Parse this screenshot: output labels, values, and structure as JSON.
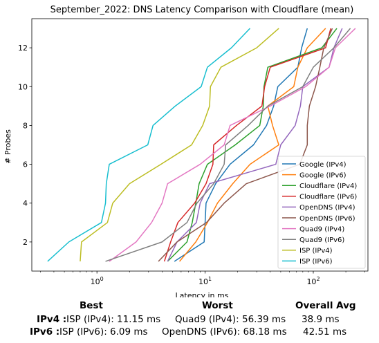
{
  "chart_data": {
    "type": "line",
    "title": "September_2022: DNS Latency Comparison with Cloudflare (mean)",
    "xlabel": "Latency in ms",
    "ylabel": "# Probes",
    "xscale": "log",
    "xlim": [
      0.25,
      320
    ],
    "ylim": [
      0.5,
      13.5
    ],
    "x_ticks": [
      {
        "value": 1,
        "base": "10",
        "exp": "0"
      },
      {
        "value": 10,
        "base": "10",
        "exp": "1"
      },
      {
        "value": 100,
        "base": "10",
        "exp": "2"
      }
    ],
    "y_ticks": [
      2,
      4,
      6,
      8,
      10,
      12
    ],
    "grid": false,
    "legend_position": "lower-right",
    "series": [
      {
        "name": "Google (IPv4)",
        "color": "#1f77b4",
        "points": [
          [
            5.2,
            1
          ],
          [
            9.8,
            2
          ],
          [
            10.2,
            4
          ],
          [
            12.5,
            5
          ],
          [
            17,
            6
          ],
          [
            28,
            7
          ],
          [
            37,
            8
          ],
          [
            43,
            9
          ],
          [
            47,
            10
          ],
          [
            72,
            11
          ],
          [
            78,
            12
          ],
          [
            88,
            13
          ]
        ]
      },
      {
        "name": "Google (IPv6)",
        "color": "#ff7f0e",
        "points": [
          [
            5.8,
            1
          ],
          [
            8.2,
            2
          ],
          [
            10.5,
            3
          ],
          [
            13,
            4
          ],
          [
            18,
            5
          ],
          [
            26,
            6
          ],
          [
            48,
            7
          ],
          [
            42,
            8
          ],
          [
            38,
            9
          ],
          [
            66,
            10
          ],
          [
            72,
            11
          ],
          [
            88,
            12
          ],
          [
            130,
            13
          ]
        ]
      },
      {
        "name": "Cloudflare (IPv4)",
        "color": "#2ca02c",
        "points": [
          [
            4.5,
            1
          ],
          [
            6.8,
            2
          ],
          [
            7.6,
            3
          ],
          [
            8.2,
            4
          ],
          [
            8.8,
            5
          ],
          [
            10.5,
            6
          ],
          [
            19,
            7
          ],
          [
            32,
            8
          ],
          [
            34.5,
            9
          ],
          [
            35,
            10
          ],
          [
            38,
            11
          ],
          [
            120,
            12
          ],
          [
            165,
            13
          ]
        ]
      },
      {
        "name": "Cloudflare (IPv6)",
        "color": "#d62728",
        "points": [
          [
            4.2,
            1
          ],
          [
            4.8,
            2
          ],
          [
            5.6,
            3
          ],
          [
            8,
            4
          ],
          [
            10.2,
            5
          ],
          [
            11.8,
            6
          ],
          [
            12,
            7
          ],
          [
            19.5,
            8
          ],
          [
            33.5,
            9
          ],
          [
            35.5,
            10
          ],
          [
            40,
            11
          ],
          [
            130,
            12
          ],
          [
            145,
            13
          ]
        ]
      },
      {
        "name": "OpenDNS (IPv4)",
        "color": "#9467bd",
        "points": [
          [
            4.5,
            1
          ],
          [
            5.5,
            2
          ],
          [
            8.3,
            3
          ],
          [
            9,
            4
          ],
          [
            11,
            5
          ],
          [
            45,
            6
          ],
          [
            50,
            7
          ],
          [
            68,
            8
          ],
          [
            76,
            9
          ],
          [
            80,
            10
          ],
          [
            140,
            11
          ],
          [
            155,
            12
          ],
          [
            185,
            13
          ]
        ]
      },
      {
        "name": "OpenDNS (IPv6)",
        "color": "#8c564b",
        "points": [
          [
            3.7,
            1
          ],
          [
            5.5,
            2
          ],
          [
            10.3,
            3
          ],
          [
            15,
            4
          ],
          [
            24,
            5
          ],
          [
            75,
            6
          ],
          [
            88,
            7
          ],
          [
            88,
            8
          ],
          [
            92,
            9
          ],
          [
            105,
            10
          ],
          [
            115,
            11
          ],
          [
            125,
            12
          ],
          [
            150,
            13
          ]
        ]
      },
      {
        "name": "Quad9 (IPv4)",
        "color": "#e377c2",
        "points": [
          [
            1.3,
            1
          ],
          [
            2.3,
            2
          ],
          [
            3.2,
            3
          ],
          [
            4,
            4
          ],
          [
            4.5,
            5
          ],
          [
            9,
            6
          ],
          [
            15,
            7
          ],
          [
            17,
            8
          ],
          [
            40,
            9
          ],
          [
            85,
            10
          ],
          [
            140,
            11
          ],
          [
            160,
            12
          ],
          [
            245,
            13
          ]
        ]
      },
      {
        "name": "Quad9 (IPv6)",
        "color": "#7f7f7f",
        "points": [
          [
            1.2,
            1
          ],
          [
            4,
            2
          ],
          [
            6.8,
            3
          ],
          [
            8.4,
            4
          ],
          [
            12,
            5
          ],
          [
            15,
            6
          ],
          [
            15.5,
            7
          ],
          [
            25,
            8
          ],
          [
            38,
            9
          ],
          [
            80,
            10
          ],
          [
            100,
            11
          ],
          [
            155,
            12
          ],
          [
            220,
            13
          ]
        ]
      },
      {
        "name": "ISP (IPv4)",
        "color": "#bcbd22",
        "points": [
          [
            0.7,
            1
          ],
          [
            0.72,
            2
          ],
          [
            1.25,
            3
          ],
          [
            1.4,
            4
          ],
          [
            2,
            5
          ],
          [
            3.9,
            6
          ],
          [
            7.5,
            7
          ],
          [
            9.5,
            8
          ],
          [
            11,
            9
          ],
          [
            11.2,
            10
          ],
          [
            14,
            11
          ],
          [
            30,
            12
          ],
          [
            48,
            13
          ]
        ]
      },
      {
        "name": "ISP (IPv6)",
        "color": "#17becf",
        "points": [
          [
            0.35,
            1
          ],
          [
            0.55,
            2
          ],
          [
            1.1,
            3
          ],
          [
            1.2,
            4
          ],
          [
            1.22,
            5
          ],
          [
            1.3,
            6
          ],
          [
            2.95,
            7
          ],
          [
            3.3,
            8
          ],
          [
            5.3,
            9
          ],
          [
            9.2,
            10
          ],
          [
            10.5,
            11
          ],
          [
            17.5,
            12
          ],
          [
            26,
            13
          ]
        ]
      }
    ]
  },
  "summary": {
    "headers": {
      "best": "Best",
      "worst": "Worst",
      "avg": "Overall Avg"
    },
    "rows": [
      {
        "label": "IPv4 :",
        "best": "ISP (IPv4): 11.15 ms",
        "worst": "Quad9 (IPv4): 56.39 ms",
        "avg": "38.9 ms"
      },
      {
        "label": "IPv6 :",
        "best": "ISP (IPv6): 6.09 ms",
        "worst": "OpenDNS (IPv6): 68.18 ms",
        "avg": "42.51 ms"
      }
    ]
  }
}
